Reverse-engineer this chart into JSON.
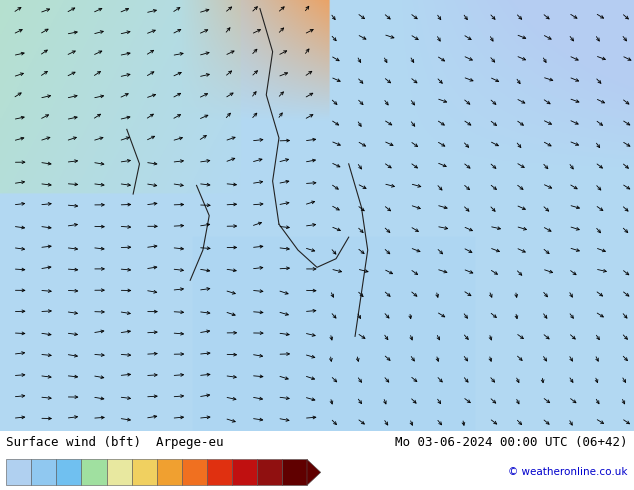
{
  "title_left": "Surface wind (bft)  Arpege-eu",
  "title_right": "Mo 03-06-2024 00:00 UTC (06+42)",
  "credit": "© weatheronline.co.uk",
  "colorbar_levels": [
    1,
    2,
    3,
    4,
    5,
    6,
    7,
    8,
    9,
    10,
    11,
    12
  ],
  "colorbar_colors": [
    "#b0d0f0",
    "#90c8f0",
    "#70c0f0",
    "#a0e0a0",
    "#e8e8a0",
    "#f0d060",
    "#f0a030",
    "#f07020",
    "#e03010",
    "#c01010",
    "#901010",
    "#600000"
  ],
  "bg_color": "#ffffff",
  "map_bg": "#d0e8f8",
  "fig_width": 6.34,
  "fig_height": 4.9,
  "dpi": 100
}
